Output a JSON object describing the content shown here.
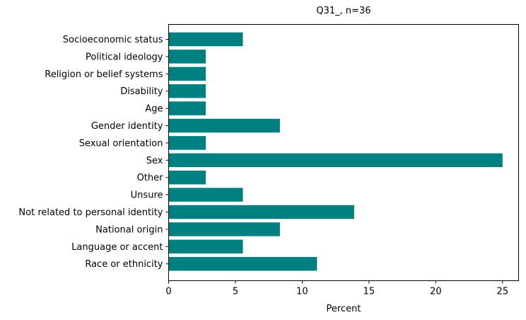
{
  "chart_data": {
    "type": "bar",
    "orientation": "horizontal",
    "title": "Q31_, n=36",
    "xlabel": "Percent",
    "ylabel": "",
    "xlim": [
      0,
      26.2
    ],
    "xticks": [
      0,
      5,
      10,
      15,
      20,
      25
    ],
    "grid": false,
    "color": "#008080",
    "categories": [
      "Socioeconomic status",
      "Political ideology",
      "Religion or belief systems",
      "Disability",
      "Age",
      "Gender identity",
      "Sexual orientation",
      "Sex",
      "Other",
      "Unsure",
      "Not related to personal identity",
      "National origin",
      "Language or accent",
      "Race or ethnicity"
    ],
    "values": [
      5.56,
      2.78,
      2.78,
      2.78,
      2.78,
      8.33,
      2.78,
      25.0,
      2.78,
      5.56,
      13.89,
      8.33,
      5.56,
      11.11
    ]
  }
}
